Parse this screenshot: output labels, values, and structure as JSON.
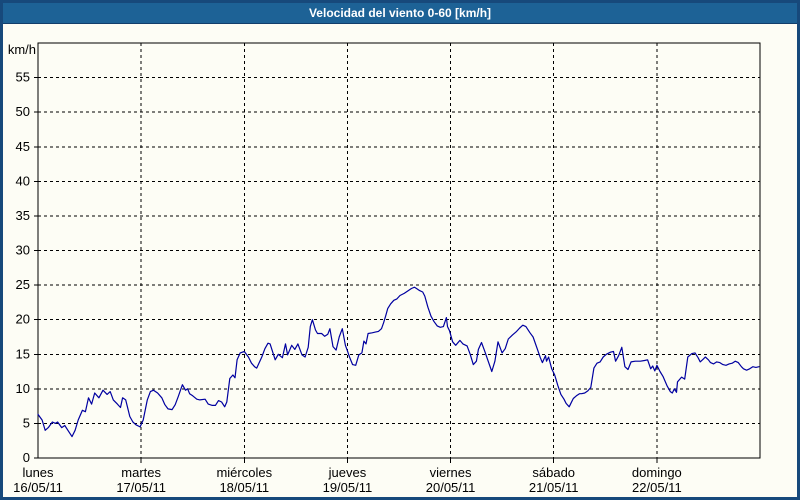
{
  "title": "Velocidad del viento 0-60 [km/h]",
  "colors": {
    "titlebar_bg": "#1D6296",
    "titlebar_text": "#FFFFFF",
    "frame_border": "#17497B",
    "content_bg": "#FDFDF5",
    "grid": "#000000",
    "axis": "#000000",
    "line": "#0000A0"
  },
  "chart_data": {
    "type": "line",
    "title": "Velocidad del viento 0-60 [km/h]",
    "xlabel": "",
    "ylabel": "km/h",
    "xlim": [
      0,
      7
    ],
    "ylim": [
      0,
      60
    ],
    "grid": "dashed",
    "legend": "none",
    "y_ticks": [
      0,
      5,
      10,
      15,
      20,
      25,
      30,
      35,
      40,
      45,
      50,
      55
    ],
    "x_ticks": [
      {
        "x": 0,
        "day": "lunes",
        "date": "16/05/11"
      },
      {
        "x": 1,
        "day": "martes",
        "date": "17/05/11"
      },
      {
        "x": 2,
        "day": "miércoles",
        "date": "18/05/11"
      },
      {
        "x": 3,
        "day": "jueves",
        "date": "19/05/11"
      },
      {
        "x": 4,
        "day": "viernes",
        "date": "20/05/11"
      },
      {
        "x": 5,
        "day": "sábado",
        "date": "21/05/11"
      },
      {
        "x": 6,
        "day": "domingo",
        "date": "22/05/11"
      }
    ],
    "series": [
      {
        "name": "velocidad del viento",
        "color": "#0000A0",
        "x_unit": "days since 16/05/11",
        "y_unit": "km/h",
        "points": [
          [
            0.0,
            6.3
          ],
          [
            0.04,
            5.5
          ],
          [
            0.07,
            4.0
          ],
          [
            0.1,
            4.4
          ],
          [
            0.14,
            5.2
          ],
          [
            0.17,
            5.0
          ],
          [
            0.19,
            5.2
          ],
          [
            0.23,
            4.4
          ],
          [
            0.26,
            4.7
          ],
          [
            0.29,
            4.0
          ],
          [
            0.33,
            3.1
          ],
          [
            0.36,
            4.0
          ],
          [
            0.39,
            5.5
          ],
          [
            0.43,
            6.9
          ],
          [
            0.46,
            6.7
          ],
          [
            0.49,
            8.7
          ],
          [
            0.52,
            7.8
          ],
          [
            0.55,
            9.4
          ],
          [
            0.59,
            8.7
          ],
          [
            0.63,
            9.8
          ],
          [
            0.67,
            9.2
          ],
          [
            0.7,
            9.6
          ],
          [
            0.73,
            8.4
          ],
          [
            0.77,
            7.8
          ],
          [
            0.8,
            7.3
          ],
          [
            0.82,
            8.7
          ],
          [
            0.85,
            8.4
          ],
          [
            0.89,
            6.0
          ],
          [
            0.92,
            5.2
          ],
          [
            0.95,
            4.8
          ],
          [
            0.99,
            4.5
          ],
          [
            1.02,
            5.5
          ],
          [
            1.06,
            8.4
          ],
          [
            1.09,
            9.6
          ],
          [
            1.12,
            9.8
          ],
          [
            1.16,
            9.4
          ],
          [
            1.2,
            8.7
          ],
          [
            1.23,
            7.7
          ],
          [
            1.26,
            7.1
          ],
          [
            1.3,
            7.0
          ],
          [
            1.33,
            7.7
          ],
          [
            1.36,
            8.9
          ],
          [
            1.4,
            10.6
          ],
          [
            1.43,
            9.8
          ],
          [
            1.45,
            10.0
          ],
          [
            1.47,
            9.3
          ],
          [
            1.5,
            9.0
          ],
          [
            1.54,
            8.5
          ],
          [
            1.57,
            8.4
          ],
          [
            1.62,
            8.5
          ],
          [
            1.65,
            7.8
          ],
          [
            1.69,
            7.6
          ],
          [
            1.72,
            7.6
          ],
          [
            1.75,
            8.3
          ],
          [
            1.78,
            8.1
          ],
          [
            1.81,
            7.4
          ],
          [
            1.83,
            8.1
          ],
          [
            1.86,
            11.5
          ],
          [
            1.89,
            12.0
          ],
          [
            1.91,
            11.6
          ],
          [
            1.93,
            14.2
          ],
          [
            1.96,
            15.2
          ],
          [
            2.0,
            15.4
          ],
          [
            2.04,
            14.6
          ],
          [
            2.07,
            13.7
          ],
          [
            2.1,
            13.2
          ],
          [
            2.12,
            13.0
          ],
          [
            2.17,
            14.6
          ],
          [
            2.2,
            15.8
          ],
          [
            2.23,
            16.6
          ],
          [
            2.25,
            16.5
          ],
          [
            2.3,
            14.2
          ],
          [
            2.33,
            15.0
          ],
          [
            2.37,
            14.5
          ],
          [
            2.4,
            16.5
          ],
          [
            2.42,
            14.9
          ],
          [
            2.46,
            16.3
          ],
          [
            2.49,
            15.7
          ],
          [
            2.52,
            16.5
          ],
          [
            2.56,
            14.9
          ],
          [
            2.59,
            14.6
          ],
          [
            2.62,
            16.0
          ],
          [
            2.64,
            19.0
          ],
          [
            2.66,
            20.0
          ],
          [
            2.69,
            18.5
          ],
          [
            2.71,
            18.0
          ],
          [
            2.75,
            18.0
          ],
          [
            2.78,
            17.6
          ],
          [
            2.81,
            17.9
          ],
          [
            2.83,
            18.7
          ],
          [
            2.86,
            16.1
          ],
          [
            2.89,
            15.6
          ],
          [
            2.92,
            17.5
          ],
          [
            2.95,
            18.7
          ],
          [
            2.98,
            16.3
          ],
          [
            3.0,
            15.5
          ],
          [
            3.02,
            14.6
          ],
          [
            3.05,
            13.5
          ],
          [
            3.08,
            13.4
          ],
          [
            3.11,
            14.9
          ],
          [
            3.14,
            15.2
          ],
          [
            3.16,
            16.9
          ],
          [
            3.18,
            16.5
          ],
          [
            3.2,
            18.0
          ],
          [
            3.24,
            18.1
          ],
          [
            3.27,
            18.2
          ],
          [
            3.3,
            18.3
          ],
          [
            3.33,
            18.7
          ],
          [
            3.35,
            19.5
          ],
          [
            3.37,
            20.5
          ],
          [
            3.39,
            21.6
          ],
          [
            3.42,
            22.3
          ],
          [
            3.45,
            22.8
          ],
          [
            3.48,
            23.0
          ],
          [
            3.51,
            23.5
          ],
          [
            3.55,
            23.8
          ],
          [
            3.59,
            24.2
          ],
          [
            3.62,
            24.5
          ],
          [
            3.65,
            24.7
          ],
          [
            3.67,
            24.5
          ],
          [
            3.7,
            24.2
          ],
          [
            3.73,
            24.0
          ],
          [
            3.75,
            23.4
          ],
          [
            3.78,
            21.8
          ],
          [
            3.81,
            20.5
          ],
          [
            3.84,
            19.7
          ],
          [
            3.87,
            19.1
          ],
          [
            3.9,
            18.9
          ],
          [
            3.93,
            19.0
          ],
          [
            3.96,
            20.3
          ],
          [
            3.97,
            19.0
          ],
          [
            3.99,
            18.4
          ],
          [
            4.02,
            16.8
          ],
          [
            4.05,
            16.3
          ],
          [
            4.09,
            17.0
          ],
          [
            4.12,
            16.5
          ],
          [
            4.16,
            16.2
          ],
          [
            4.19,
            15.0
          ],
          [
            4.22,
            13.5
          ],
          [
            4.25,
            14.0
          ],
          [
            4.27,
            15.7
          ],
          [
            4.3,
            16.7
          ],
          [
            4.33,
            15.5
          ],
          [
            4.36,
            14.2
          ],
          [
            4.4,
            12.5
          ],
          [
            4.43,
            14.0
          ],
          [
            4.46,
            16.8
          ],
          [
            4.5,
            15.2
          ],
          [
            4.53,
            15.8
          ],
          [
            4.56,
            17.2
          ],
          [
            4.6,
            17.8
          ],
          [
            4.64,
            18.3
          ],
          [
            4.67,
            18.8
          ],
          [
            4.7,
            19.2
          ],
          [
            4.73,
            19.0
          ],
          [
            4.77,
            18.1
          ],
          [
            4.8,
            17.5
          ],
          [
            4.84,
            15.8
          ],
          [
            4.87,
            14.5
          ],
          [
            4.89,
            13.8
          ],
          [
            4.92,
            14.8
          ],
          [
            4.93,
            14.0
          ],
          [
            4.95,
            14.6
          ],
          [
            4.98,
            12.9
          ],
          [
            5.01,
            12.0
          ],
          [
            5.04,
            10.5
          ],
          [
            5.07,
            9.2
          ],
          [
            5.1,
            8.5
          ],
          [
            5.12,
            7.9
          ],
          [
            5.15,
            7.4
          ],
          [
            5.17,
            8.0
          ],
          [
            5.19,
            8.6
          ],
          [
            5.22,
            9.0
          ],
          [
            5.25,
            9.3
          ],
          [
            5.27,
            9.3
          ],
          [
            5.3,
            9.4
          ],
          [
            5.33,
            9.7
          ],
          [
            5.36,
            10.2
          ],
          [
            5.39,
            13.0
          ],
          [
            5.42,
            13.7
          ],
          [
            5.45,
            13.9
          ],
          [
            5.48,
            14.6
          ],
          [
            5.51,
            15.0
          ],
          [
            5.55,
            15.3
          ],
          [
            5.58,
            15.4
          ],
          [
            5.6,
            14.0
          ],
          [
            5.63,
            14.8
          ],
          [
            5.66,
            16.0
          ],
          [
            5.69,
            13.2
          ],
          [
            5.72,
            12.8
          ],
          [
            5.75,
            13.9
          ],
          [
            5.79,
            14.0
          ],
          [
            5.84,
            14.0
          ],
          [
            5.88,
            14.1
          ],
          [
            5.91,
            14.2
          ],
          [
            5.94,
            12.9
          ],
          [
            5.96,
            13.3
          ],
          [
            5.98,
            12.6
          ],
          [
            6.0,
            13.4
          ],
          [
            6.03,
            12.5
          ],
          [
            6.06,
            11.8
          ],
          [
            6.1,
            10.4
          ],
          [
            6.13,
            9.6
          ],
          [
            6.15,
            9.4
          ],
          [
            6.17,
            10.0
          ],
          [
            6.19,
            9.5
          ],
          [
            6.2,
            11.0
          ],
          [
            6.24,
            11.7
          ],
          [
            6.27,
            11.4
          ],
          [
            6.3,
            14.6
          ],
          [
            6.34,
            15.1
          ],
          [
            6.37,
            15.2
          ],
          [
            6.4,
            14.5
          ],
          [
            6.42,
            13.9
          ],
          [
            6.45,
            14.3
          ],
          [
            6.47,
            14.6
          ],
          [
            6.5,
            14.2
          ],
          [
            6.52,
            13.8
          ],
          [
            6.55,
            13.6
          ],
          [
            6.58,
            13.9
          ],
          [
            6.61,
            13.8
          ],
          [
            6.64,
            13.5
          ],
          [
            6.67,
            13.4
          ],
          [
            6.7,
            13.6
          ],
          [
            6.73,
            13.7
          ],
          [
            6.76,
            14.0
          ],
          [
            6.79,
            13.8
          ],
          [
            6.82,
            13.2
          ],
          [
            6.84,
            12.9
          ],
          [
            6.87,
            12.7
          ],
          [
            6.9,
            12.9
          ],
          [
            6.93,
            13.2
          ],
          [
            6.96,
            13.1
          ],
          [
            6.99,
            13.2
          ]
        ]
      }
    ]
  }
}
